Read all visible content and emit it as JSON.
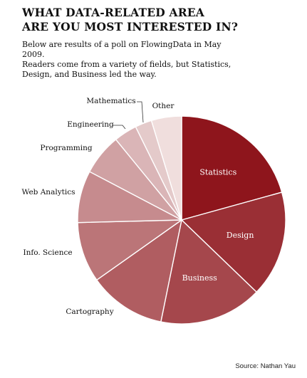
{
  "header": {
    "title_line1": "WHAT DATA-RELATED AREA",
    "title_line2": "ARE YOU MOST INTERESTED IN?",
    "subtitle_line1": "Below are results of a poll on FlowingData in May 2009.",
    "subtitle_line2": "Readers come from a variety of fields, but Statistics,",
    "subtitle_line3": "Design, and Business led the way."
  },
  "footer": {
    "source": "Source: Nathan Yau"
  },
  "chart_data": {
    "type": "pie",
    "start": "12 o'clock, clockwise",
    "slices": [
      {
        "label": "Statistics",
        "value": 20.7,
        "color": "#8e151c",
        "label_inside": true
      },
      {
        "label": "Design",
        "value": 16.5,
        "color": "#9a2f35",
        "label_inside": true
      },
      {
        "label": "Business",
        "value": 16.0,
        "color": "#a5474c",
        "label_inside": true
      },
      {
        "label": "Cartography",
        "value": 12.0,
        "color": "#b05d61",
        "label_inside": false
      },
      {
        "label": "Info. Science",
        "value": 9.4,
        "color": "#bb7578",
        "label_inside": false
      },
      {
        "label": "Web Analytics",
        "value": 8.1,
        "color": "#c68b8e",
        "label_inside": false
      },
      {
        "label": "Programming",
        "value": 6.4,
        "color": "#d0a1a3",
        "label_inside": false
      },
      {
        "label": "Engineering",
        "value": 3.6,
        "color": "#dab5b7",
        "label_inside": false
      },
      {
        "label": "Mathematics",
        "value": 2.6,
        "color": "#e4caca",
        "label_inside": false
      },
      {
        "label": "Other",
        "value": 4.7,
        "color": "#f0dedd",
        "label_inside": false
      }
    ]
  }
}
